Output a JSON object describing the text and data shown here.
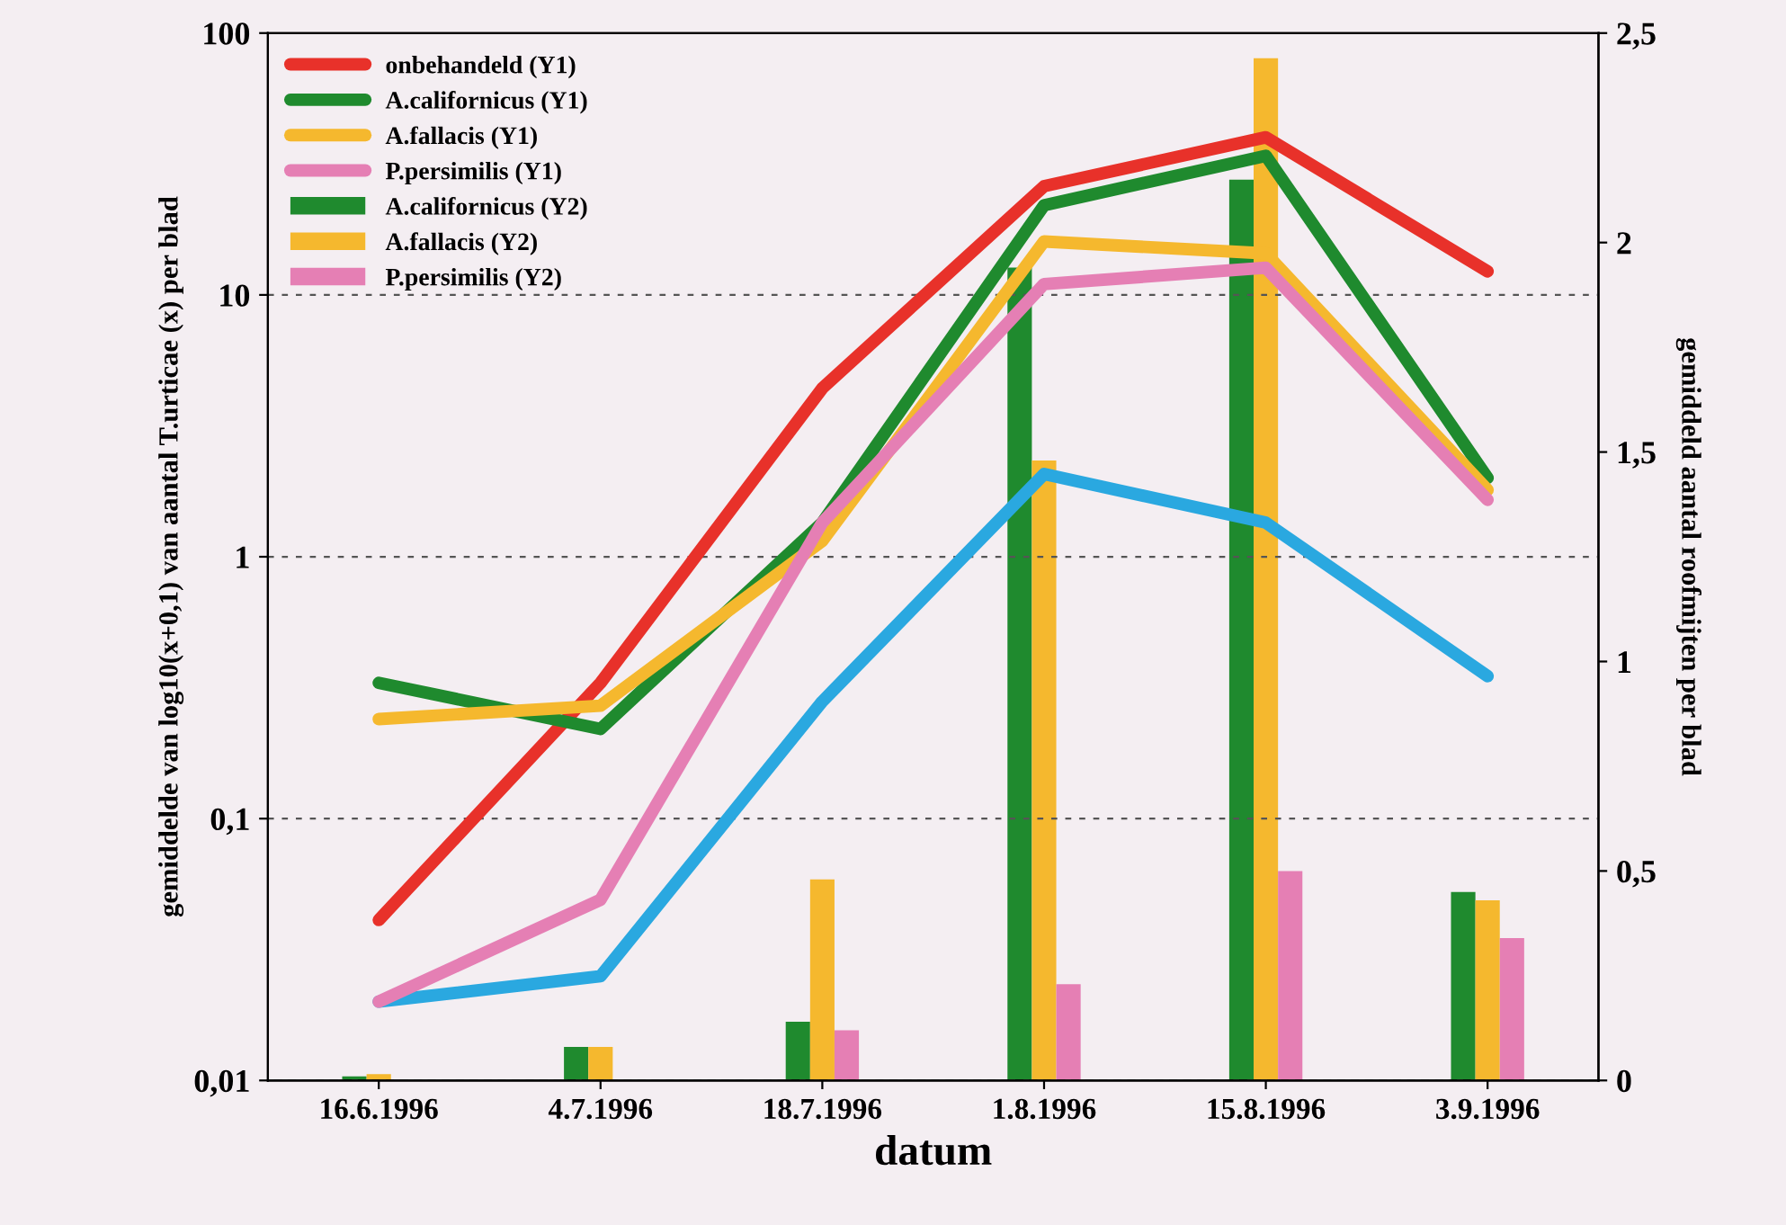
{
  "chart_data": {
    "type": "line",
    "xlabel": "datum",
    "ylabel": "gemiddelde van log10(x+0,1) van aantal T.urticae (x) per blad",
    "y2label": "gemiddeld aantal roofmijten per blad",
    "categories": [
      "16.6.1996",
      "4.7.1996",
      "18.7.1996",
      "1.8.1996",
      "15.8.1996",
      "3.9.1996"
    ],
    "log": "y",
    "ylim": [
      0.01,
      100
    ],
    "yticks": [
      {
        "value": 0.01,
        "label": "0,01"
      },
      {
        "value": 0.1,
        "label": "0,1"
      },
      1,
      10,
      100
    ],
    "y2lim": [
      0,
      2.5
    ],
    "y2ticks": [
      0,
      {
        "value": 0.5,
        "label": "0,5"
      },
      1,
      {
        "value": 1.5,
        "label": "1,5"
      },
      2,
      {
        "value": 2.5,
        "label": "2,5"
      }
    ],
    "grid": "y",
    "legend": "top left",
    "series": [
      {
        "name": "onbehandeld (Y1)",
        "color": "#e8312a",
        "values": [
          0.041,
          0.33,
          4.4,
          26,
          40,
          12.3
        ]
      },
      {
        "color": "#2aa8e0",
        "values": [
          0.02,
          0.025,
          0.28,
          2.07,
          1.35,
          0.35
        ]
      },
      {
        "name": "A.californicus (Y1)",
        "color": "#1f8a2e",
        "values": [
          0.33,
          0.22,
          1.35,
          22,
          34,
          2.0
        ]
      },
      {
        "name": "A.fallacis (Y1)",
        "color": "#f5b82e",
        "values": [
          0.24,
          0.27,
          1.15,
          16,
          14.4,
          1.8
        ]
      },
      {
        "name": "P.persimilis (Y1)",
        "color": "#e57fb4",
        "values": [
          0.02,
          0.049,
          1.35,
          11,
          12.7,
          1.65
        ]
      },
      {
        "name": "A.californicus (Y2)",
        "type": "bar",
        "axis": "y2",
        "color": "#1f8a2e",
        "values": [
          0.01,
          0.08,
          0.14,
          1.94,
          2.15,
          0.45
        ]
      },
      {
        "name": "A.fallacis (Y2)",
        "type": "bar",
        "axis": "y2",
        "color": "#f5b82e",
        "values": [
          0.015,
          0.08,
          0.48,
          1.48,
          2.44,
          0.43
        ]
      },
      {
        "name": "P.persimilis (Y2)",
        "type": "bar",
        "axis": "y2",
        "color": "#e57fb4",
        "values": [
          0,
          0,
          0.12,
          0.23,
          0.5,
          0.34
        ]
      }
    ]
  }
}
